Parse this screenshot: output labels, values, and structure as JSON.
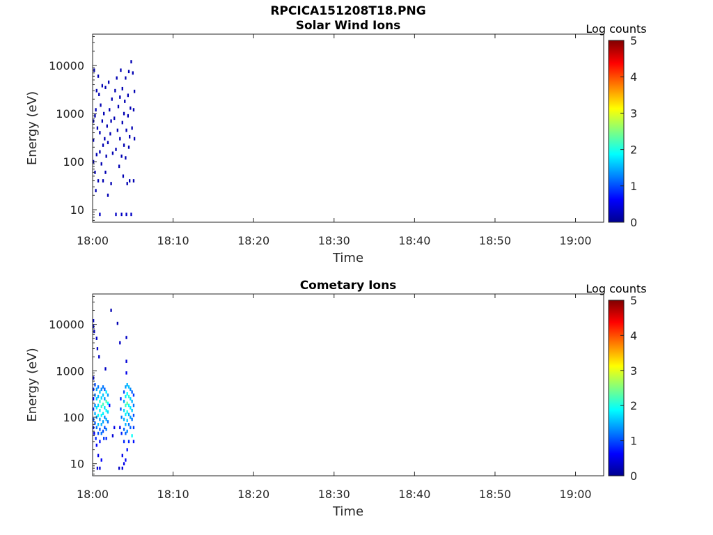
{
  "figure_title": "RPCICA151208T18.PNG",
  "colormap_colors": [
    "#00008f",
    "#0000ff",
    "#0080ff",
    "#00ffff",
    "#80ff80",
    "#ffff00",
    "#ff8000",
    "#ff0000",
    "#800000"
  ],
  "chart_data": [
    {
      "type": "heatmap",
      "title": "Solar Wind Ions",
      "xlabel": "Time",
      "ylabel": "Energy (eV)",
      "x_tick_labels": [
        "18:00",
        "18:10",
        "18:20",
        "18:30",
        "18:40",
        "18:50",
        "19:00"
      ],
      "x_tick_values_min": [
        0,
        10,
        20,
        30,
        40,
        50,
        60
      ],
      "xlim_min": [
        0,
        63.5
      ],
      "y_scale": "log",
      "ylim": [
        5.5,
        45000
      ],
      "y_tick_labels": [
        "10",
        "100",
        "1000",
        "10000"
      ],
      "y_tick_values": [
        10,
        100,
        1000,
        10000
      ],
      "colorbar": {
        "label": "Log counts",
        "range": [
          0,
          5
        ],
        "tick_labels": [
          "0",
          "1",
          "2",
          "3",
          "4",
          "5"
        ]
      },
      "cells": [
        [
          0.0,
          100,
          0.2
        ],
        [
          0.0,
          280,
          0.2
        ],
        [
          0.0,
          700,
          0.2
        ],
        [
          0.1,
          8000,
          0.2
        ],
        [
          0.2,
          60,
          0.2
        ],
        [
          0.2,
          900,
          0.2
        ],
        [
          0.3,
          25,
          0.2
        ],
        [
          0.3,
          1200,
          0.2
        ],
        [
          0.4,
          140,
          0.2
        ],
        [
          0.4,
          3000,
          0.2
        ],
        [
          0.5,
          500,
          0.2
        ],
        [
          0.6,
          40,
          0.2
        ],
        [
          0.6,
          6000,
          0.2
        ],
        [
          0.7,
          2500,
          0.2
        ],
        [
          0.8,
          8,
          0.3
        ],
        [
          0.8,
          160,
          0.2
        ],
        [
          0.8,
          400,
          0.2
        ],
        [
          0.9,
          1500,
          0.2
        ],
        [
          1.0,
          90,
          0.2
        ],
        [
          1.1,
          700,
          0.2
        ],
        [
          1.1,
          3800,
          0.2
        ],
        [
          1.2,
          40,
          0.2
        ],
        [
          1.2,
          220,
          0.2
        ],
        [
          1.3,
          1000,
          0.2
        ],
        [
          1.4,
          300,
          0.2
        ],
        [
          1.5,
          60,
          0.2
        ],
        [
          1.5,
          3500,
          0.2
        ],
        [
          1.6,
          130,
          0.2
        ],
        [
          1.7,
          550,
          0.2
        ],
        [
          1.8,
          20,
          0.2
        ],
        [
          1.8,
          250,
          0.2
        ],
        [
          1.9,
          4500,
          0.2
        ],
        [
          2.0,
          1200,
          0.2
        ],
        [
          2.1,
          380,
          0.2
        ],
        [
          2.2,
          35,
          0.2
        ],
        [
          2.2,
          700,
          0.2
        ],
        [
          2.3,
          2000,
          0.2
        ],
        [
          2.4,
          150,
          0.2
        ],
        [
          2.6,
          800,
          0.2
        ],
        [
          2.7,
          3000,
          0.2
        ],
        [
          2.8,
          8,
          0.3
        ],
        [
          2.8,
          180,
          0.2
        ],
        [
          2.9,
          5500,
          0.2
        ],
        [
          3.0,
          450,
          0.2
        ],
        [
          3.1,
          1400,
          0.2
        ],
        [
          3.2,
          80,
          0.2
        ],
        [
          3.3,
          2200,
          0.2
        ],
        [
          3.3,
          300,
          0.2
        ],
        [
          3.4,
          8000,
          0.2
        ],
        [
          3.5,
          8,
          0.3
        ],
        [
          3.5,
          130,
          0.2
        ],
        [
          3.6,
          650,
          0.2
        ],
        [
          3.6,
          3300,
          0.2
        ],
        [
          3.7,
          50,
          0.2
        ],
        [
          3.8,
          220,
          0.2
        ],
        [
          3.8,
          1000,
          0.2
        ],
        [
          3.9,
          1800,
          0.2
        ],
        [
          4.0,
          120,
          0.2
        ],
        [
          4.0,
          5500,
          0.2
        ],
        [
          4.1,
          8,
          0.3
        ],
        [
          4.1,
          450,
          0.2
        ],
        [
          4.2,
          35,
          0.2
        ],
        [
          4.3,
          900,
          0.2
        ],
        [
          4.3,
          2400,
          0.2
        ],
        [
          4.4,
          200,
          0.2
        ],
        [
          4.4,
          7500,
          0.2
        ],
        [
          4.5,
          40,
          0.2
        ],
        [
          4.5,
          330,
          0.2
        ],
        [
          4.6,
          1300,
          0.2
        ],
        [
          4.7,
          12000,
          0.2
        ],
        [
          4.7,
          8,
          0.3
        ],
        [
          4.8,
          500,
          0.2
        ],
        [
          4.9,
          7000,
          0.2
        ],
        [
          5.0,
          40,
          0.2
        ],
        [
          5.0,
          1200,
          0.2
        ],
        [
          5.1,
          300,
          0.2
        ],
        [
          5.1,
          2900,
          0.2
        ]
      ]
    },
    {
      "type": "heatmap",
      "title": "Cometary Ions",
      "xlabel": "Time",
      "ylabel": "Energy (eV)",
      "x_tick_labels": [
        "18:00",
        "18:10",
        "18:20",
        "18:30",
        "18:40",
        "18:50",
        "19:00"
      ],
      "x_tick_values_min": [
        0,
        10,
        20,
        30,
        40,
        50,
        60
      ],
      "xlim_min": [
        0,
        63.5
      ],
      "y_scale": "log",
      "ylim": [
        5.5,
        45000
      ],
      "y_tick_labels": [
        "10",
        "100",
        "1000",
        "10000"
      ],
      "y_tick_values": [
        10,
        100,
        1000,
        10000
      ],
      "colorbar": {
        "label": "Log counts",
        "range": [
          0,
          5
        ],
        "tick_labels": [
          "0",
          "1",
          "2",
          "3",
          "4",
          "5"
        ]
      },
      "cells": [
        [
          0.0,
          12000,
          0.3
        ],
        [
          0.0,
          9000,
          0.4
        ],
        [
          0.0,
          700,
          0.5
        ],
        [
          0.0,
          400,
          0.8
        ],
        [
          0.0,
          250,
          0.6
        ],
        [
          0.0,
          150,
          0.9
        ],
        [
          0.0,
          90,
          1.0
        ],
        [
          0.0,
          60,
          0.7
        ],
        [
          0.1,
          45,
          0.5
        ],
        [
          0.1,
          7000,
          0.3
        ],
        [
          0.2,
          500,
          1.0
        ],
        [
          0.2,
          300,
          1.2
        ],
        [
          0.2,
          180,
          1.3
        ],
        [
          0.2,
          120,
          1.5
        ],
        [
          0.2,
          75,
          1.1
        ],
        [
          0.3,
          35,
          0.8
        ],
        [
          0.4,
          5000,
          0.3
        ],
        [
          0.4,
          400,
          1.4
        ],
        [
          0.4,
          250,
          1.6
        ],
        [
          0.4,
          160,
          1.8
        ],
        [
          0.4,
          100,
          1.4
        ],
        [
          0.4,
          60,
          1.2
        ],
        [
          0.4,
          25,
          0.6
        ],
        [
          0.5,
          3000,
          0.3
        ],
        [
          0.5,
          8,
          0.4
        ],
        [
          0.6,
          450,
          1.2
        ],
        [
          0.6,
          280,
          1.5
        ],
        [
          0.6,
          180,
          1.7
        ],
        [
          0.6,
          110,
          1.9
        ],
        [
          0.6,
          70,
          1.6
        ],
        [
          0.6,
          45,
          1.0
        ],
        [
          0.6,
          15,
          0.5
        ],
        [
          0.7,
          2000,
          0.3
        ],
        [
          0.8,
          350,
          1.6
        ],
        [
          0.8,
          220,
          2.0
        ],
        [
          0.8,
          140,
          1.8
        ],
        [
          0.8,
          90,
          1.4
        ],
        [
          0.8,
          55,
          1.1
        ],
        [
          0.8,
          30,
          0.7
        ],
        [
          0.8,
          8,
          0.4
        ],
        [
          1.0,
          400,
          1.3
        ],
        [
          1.0,
          260,
          1.7
        ],
        [
          1.0,
          170,
          2.1
        ],
        [
          1.0,
          110,
          1.9
        ],
        [
          1.0,
          70,
          1.5
        ],
        [
          1.0,
          45,
          1.2
        ],
        [
          1.0,
          12,
          0.6
        ],
        [
          1.2,
          450,
          1.2
        ],
        [
          1.2,
          300,
          1.6
        ],
        [
          1.2,
          190,
          2.2
        ],
        [
          1.2,
          120,
          1.8
        ],
        [
          1.2,
          80,
          1.4
        ],
        [
          1.2,
          50,
          1.0
        ],
        [
          1.3,
          35,
          0.9
        ],
        [
          1.4,
          400,
          1.1
        ],
        [
          1.4,
          250,
          1.4
        ],
        [
          1.4,
          160,
          1.7
        ],
        [
          1.4,
          100,
          1.3
        ],
        [
          1.4,
          60,
          1.0
        ],
        [
          1.5,
          1100,
          0.3
        ],
        [
          1.6,
          350,
          1.8
        ],
        [
          1.6,
          220,
          2.3
        ],
        [
          1.6,
          140,
          1.9
        ],
        [
          1.6,
          90,
          1.5
        ],
        [
          1.6,
          55,
          1.2
        ],
        [
          1.6,
          35,
          0.8
        ],
        [
          1.8,
          300,
          1.4
        ],
        [
          1.8,
          200,
          1.9
        ],
        [
          1.8,
          130,
          1.7
        ],
        [
          1.8,
          80,
          1.2
        ],
        [
          2.0,
          180,
          0.7
        ],
        [
          2.2,
          20000,
          0.2
        ],
        [
          2.4,
          40,
          0.4
        ],
        [
          2.6,
          60,
          0.5
        ],
        [
          3.0,
          10500,
          0.2
        ],
        [
          3.2,
          8,
          0.3
        ],
        [
          3.3,
          60,
          0.5
        ],
        [
          3.3,
          4000,
          0.3
        ],
        [
          3.4,
          250,
          0.8
        ],
        [
          3.4,
          150,
          1.0
        ],
        [
          3.5,
          100,
          1.2
        ],
        [
          3.5,
          45,
          0.8
        ],
        [
          3.6,
          15,
          0.5
        ],
        [
          3.6,
          8,
          0.4
        ],
        [
          3.8,
          350,
          1.0
        ],
        [
          3.8,
          220,
          1.4
        ],
        [
          3.8,
          140,
          1.7
        ],
        [
          3.8,
          90,
          1.5
        ],
        [
          3.8,
          55,
          1.1
        ],
        [
          3.8,
          30,
          0.8
        ],
        [
          3.8,
          10,
          0.5
        ],
        [
          4.0,
          450,
          1.4
        ],
        [
          4.0,
          280,
          1.8
        ],
        [
          4.0,
          180,
          2.1
        ],
        [
          4.0,
          115,
          1.8
        ],
        [
          4.0,
          70,
          1.5
        ],
        [
          4.0,
          45,
          1.1
        ],
        [
          4.0,
          12,
          0.6
        ],
        [
          4.1,
          5200,
          0.3
        ],
        [
          4.1,
          1600,
          0.4
        ],
        [
          4.1,
          900,
          0.5
        ],
        [
          4.2,
          500,
          1.5
        ],
        [
          4.2,
          320,
          1.9
        ],
        [
          4.2,
          200,
          2.4
        ],
        [
          4.2,
          130,
          2.0
        ],
        [
          4.2,
          85,
          1.6
        ],
        [
          4.2,
          50,
          1.3
        ],
        [
          4.2,
          20,
          0.7
        ],
        [
          4.4,
          450,
          1.6
        ],
        [
          4.4,
          280,
          2.1
        ],
        [
          4.4,
          180,
          1.9
        ],
        [
          4.4,
          115,
          1.5
        ],
        [
          4.4,
          70,
          1.2
        ],
        [
          4.4,
          30,
          0.8
        ],
        [
          4.6,
          400,
          1.3
        ],
        [
          4.6,
          250,
          1.7
        ],
        [
          4.6,
          160,
          1.8
        ],
        [
          4.6,
          100,
          1.4
        ],
        [
          4.6,
          60,
          1.1
        ],
        [
          4.8,
          350,
          1.1
        ],
        [
          4.8,
          220,
          1.5
        ],
        [
          4.8,
          140,
          1.6
        ],
        [
          4.8,
          90,
          1.2
        ],
        [
          4.8,
          40,
          1.9
        ],
        [
          5.0,
          300,
          0.9
        ],
        [
          5.0,
          180,
          1.2
        ],
        [
          5.0,
          110,
          1.0
        ],
        [
          5.0,
          60,
          0.9
        ],
        [
          5.0,
          30,
          0.7
        ]
      ]
    }
  ]
}
